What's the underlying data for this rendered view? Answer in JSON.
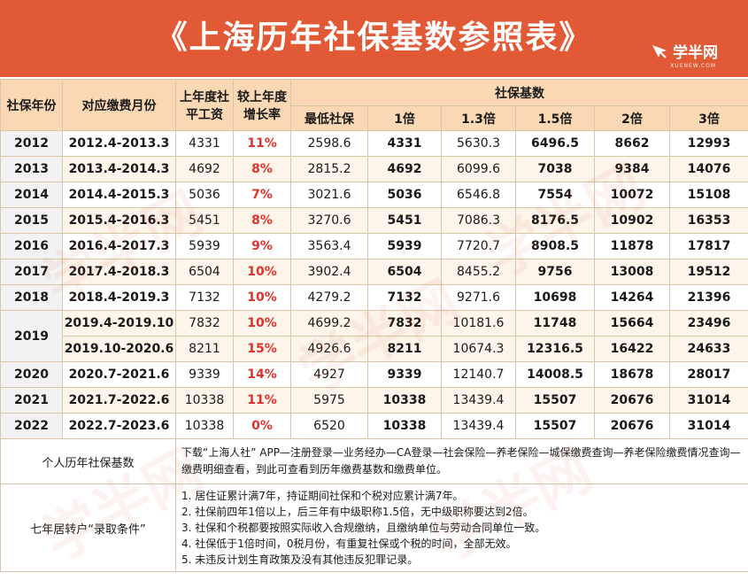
{
  "banner": {
    "title": "《上海历年社保基数参照表》",
    "brand_name": "学半网",
    "brand_sub": "XUENEW.COM",
    "watermark": "学半网"
  },
  "colors": {
    "banner": "#e25a35",
    "header": "#f9d8b3",
    "rate_text": "#e0312b"
  },
  "table": {
    "headers": {
      "year": "社保年份",
      "period": "对应缴费月份",
      "avg_wage": "上年度社平工资",
      "growth": "较上年度增长率",
      "base_group": "社保基数",
      "min": "最低社保",
      "x1": "1倍",
      "x13": "1.3倍",
      "x15": "1.5倍",
      "x2": "2倍",
      "x3": "3倍"
    },
    "rows": [
      {
        "year": "2012",
        "period": "2012.4-2013.3",
        "wage": "4331",
        "growth": "11%",
        "min": "2598.6",
        "x1": "4331",
        "x13": "5630.3",
        "x15": "6496.5",
        "x2": "8662",
        "x3": "12993"
      },
      {
        "year": "2013",
        "period": "2013.4-2014.3",
        "wage": "4692",
        "growth": "8%",
        "min": "2815.2",
        "x1": "4692",
        "x13": "6099.6",
        "x15": "7038",
        "x2": "9384",
        "x3": "14076"
      },
      {
        "year": "2014",
        "period": "2014.4-2015.3",
        "wage": "5036",
        "growth": "7%",
        "min": "3021.6",
        "x1": "5036",
        "x13": "6546.8",
        "x15": "7554",
        "x2": "10072",
        "x3": "15108"
      },
      {
        "year": "2015",
        "period": "2015.4-2016.3",
        "wage": "5451",
        "growth": "8%",
        "min": "3270.6",
        "x1": "5451",
        "x13": "7086.3",
        "x15": "8176.5",
        "x2": "10902",
        "x3": "16353"
      },
      {
        "year": "2016",
        "period": "2016.4-2017.3",
        "wage": "5939",
        "growth": "9%",
        "min": "3563.4",
        "x1": "5939",
        "x13": "7720.7",
        "x15": "8908.5",
        "x2": "11878",
        "x3": "17817"
      },
      {
        "year": "2017",
        "period": "2017.4-2018.3",
        "wage": "6504",
        "growth": "10%",
        "min": "3902.4",
        "x1": "6504",
        "x13": "8455.2",
        "x15": "9756",
        "x2": "13008",
        "x3": "19512"
      },
      {
        "year": "2018",
        "period": "2018.4-2019.3",
        "wage": "7132",
        "growth": "10%",
        "min": "4279.2",
        "x1": "7132",
        "x13": "9271.6",
        "x15": "10698",
        "x2": "14264",
        "x3": "21396"
      },
      {
        "year": "2019",
        "period": "2019.4-2019.10",
        "wage": "7832",
        "growth": "10%",
        "min": "4699.2",
        "x1": "7832",
        "x13": "10181.6",
        "x15": "11748",
        "x2": "15664",
        "x3": "23496"
      },
      {
        "year": "",
        "period": "2019.10-2020.6",
        "wage": "8211",
        "growth": "15%",
        "min": "4926.6",
        "x1": "8211",
        "x13": "10674.3",
        "x15": "12316.5",
        "x2": "16422",
        "x3": "24633"
      },
      {
        "year": "2020",
        "period": "2020.7-2021.6",
        "wage": "9339",
        "growth": "14%",
        "min": "4927",
        "x1": "9339",
        "x13": "12140.7",
        "x15": "14008.5",
        "x2": "18678",
        "x3": "28017"
      },
      {
        "year": "2021",
        "period": "2021.7-2022.6",
        "wage": "10338",
        "growth": "11%",
        "min": "5975",
        "x1": "10338",
        "x13": "13439.4",
        "x15": "15507",
        "x2": "20676",
        "x3": "31014"
      },
      {
        "year": "2022",
        "period": "2022.7-2023.6",
        "wage": "10338",
        "growth": "0%",
        "min": "6520",
        "x1": "10338",
        "x13": "13439.4",
        "x15": "15507",
        "x2": "20676",
        "x3": "31014"
      }
    ]
  },
  "footer": {
    "personal": {
      "label": "个人历年社保基数",
      "text": "下载“上海人社” APP—注册登录—业务经办—CA登录—社会保险—养老保险—城保缴费查询—养老保险缴费情况查询—缴费明细查看，到此可查看到历年缴费基数和缴费单位。"
    },
    "conditions": {
      "label": "七年居转户“录取条件”",
      "items": [
        "1. 居住证累计满7年，持证期间社保和个税对应累计满7年。",
        "2. 社保前四年1倍以上，后三年有中级职称1.5倍，无中级职称要达到2倍。",
        "3. 社保和个税都要按照实际收入合规缴纳，且缴纳单位与劳动合同单位一致。",
        "4. 社保低于1倍时间，0税月份，有重复社保或个税的时间，全部无效。",
        "5. 未违反计划生育政策及没有其他违反犯罪记录。"
      ]
    }
  }
}
